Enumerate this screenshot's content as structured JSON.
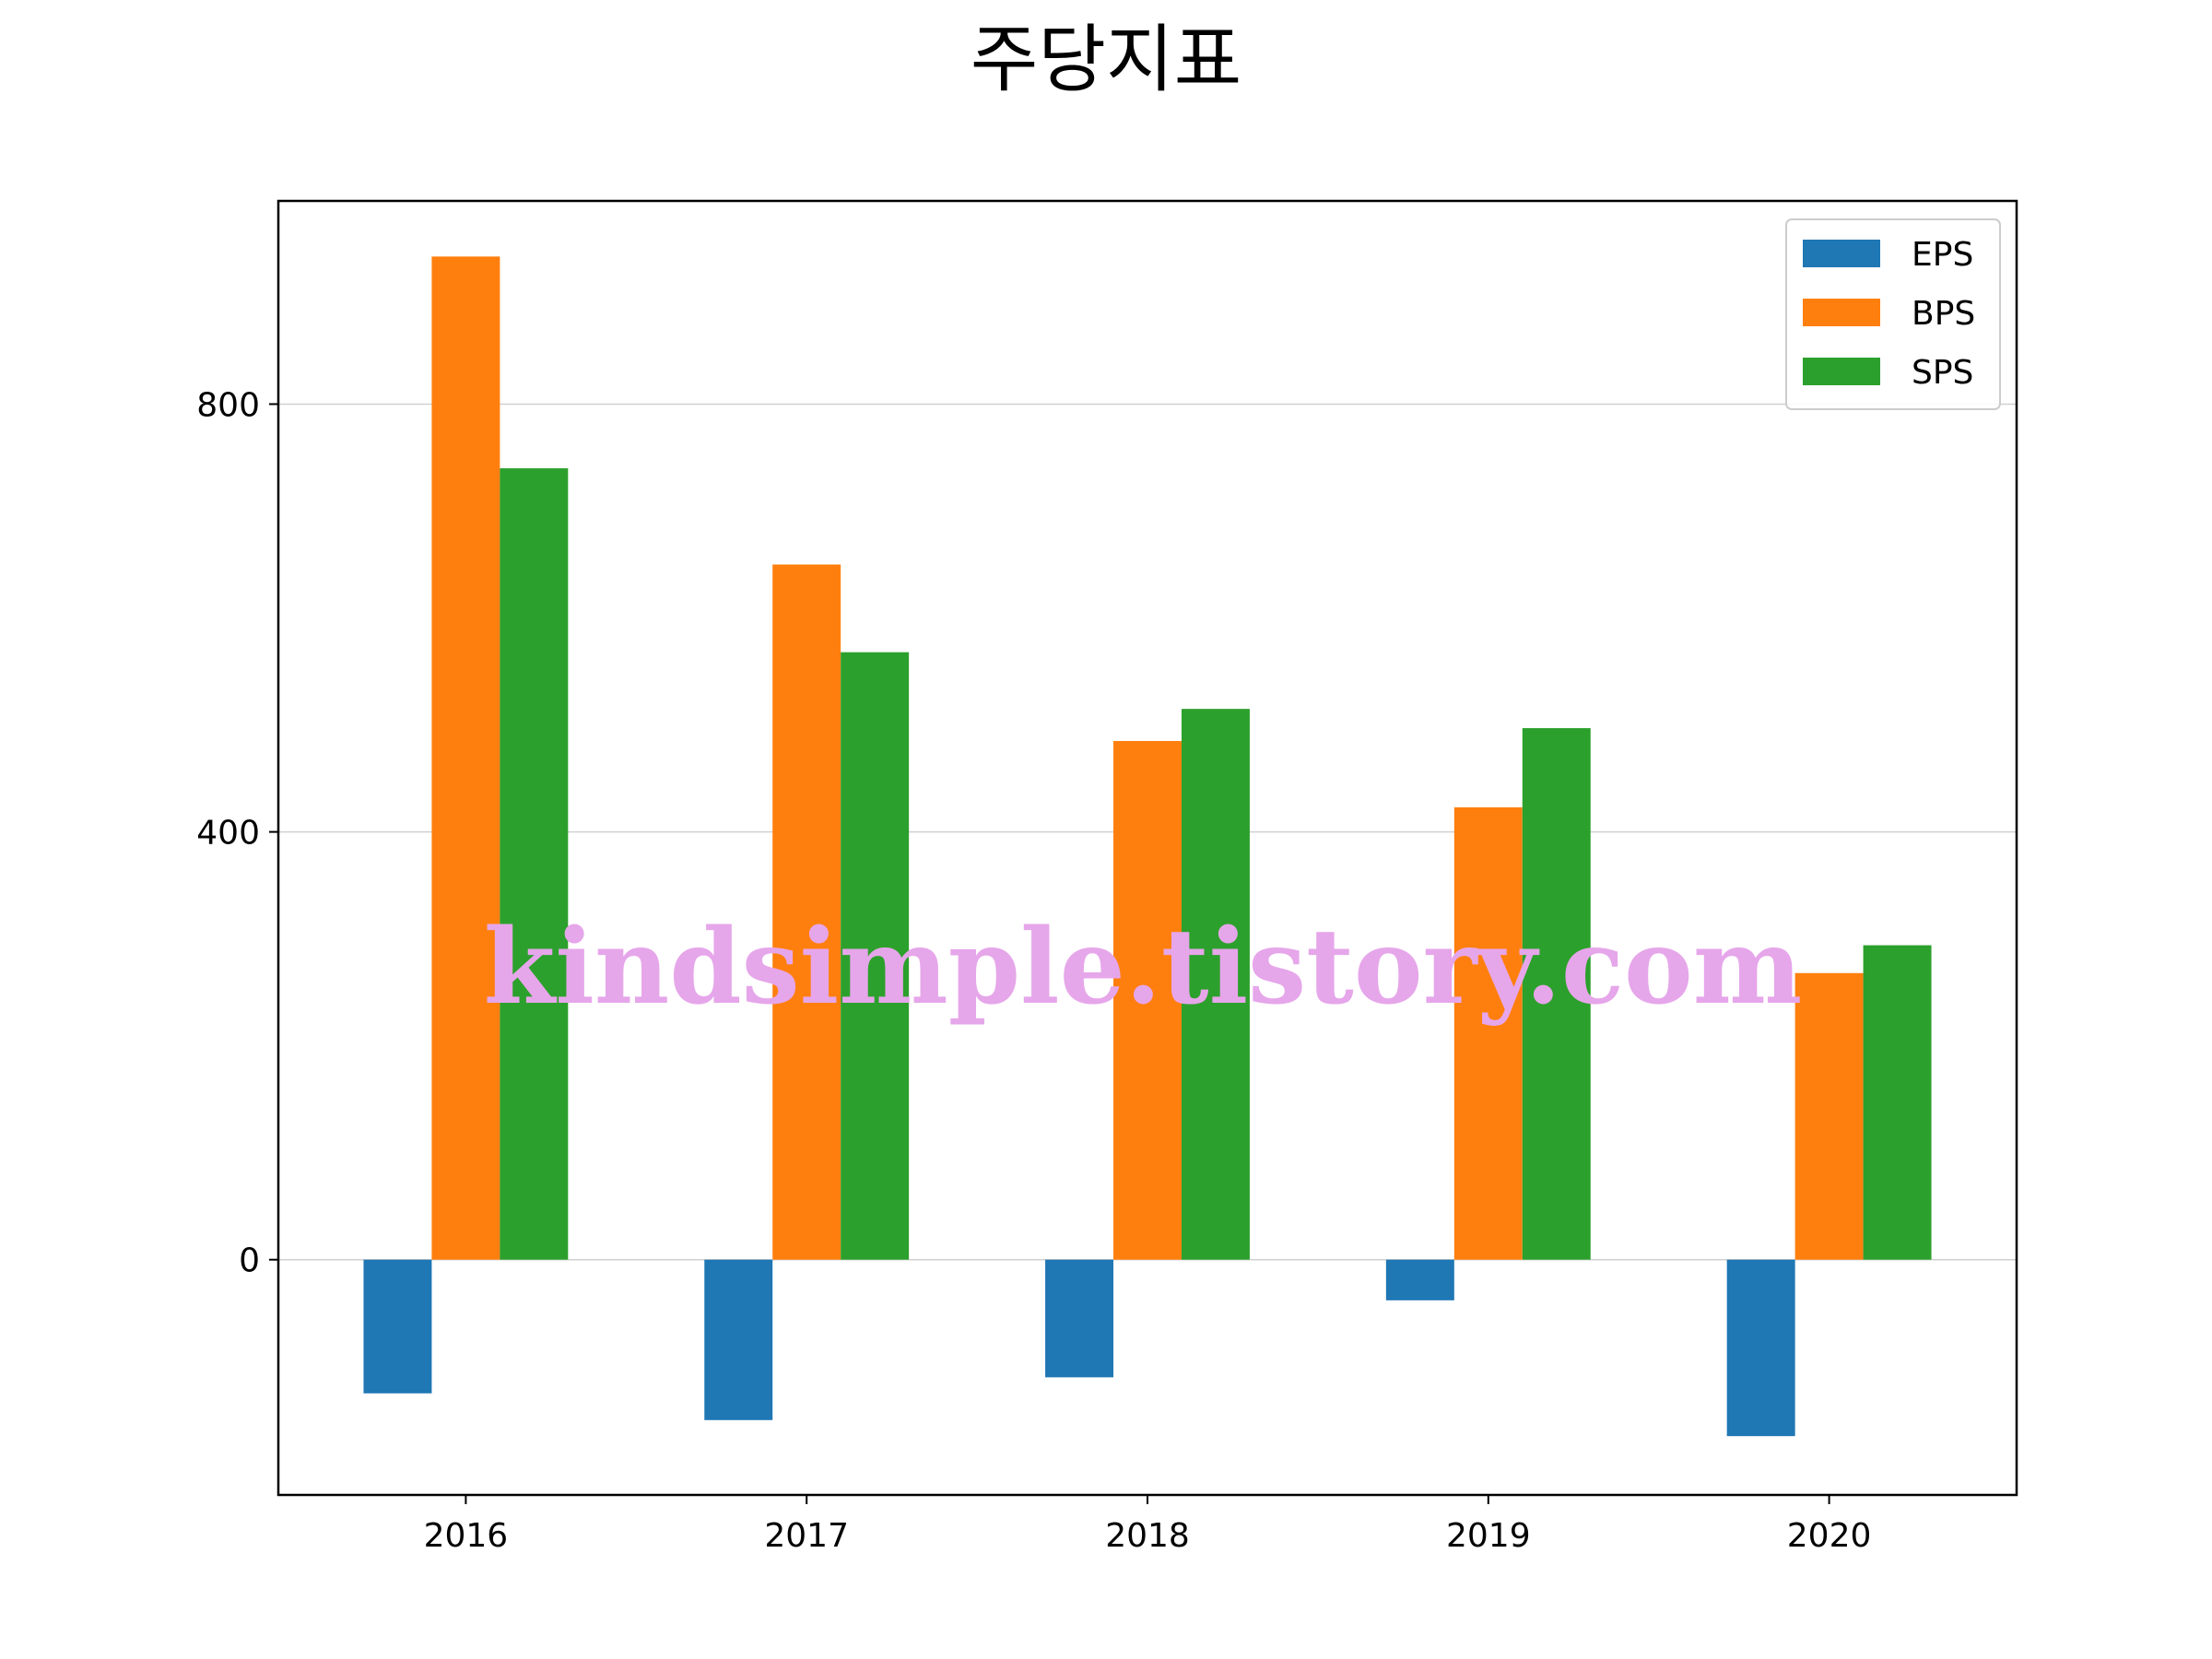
{
  "chart_data": {
    "type": "bar",
    "title": "주당지표",
    "xlabel": "",
    "ylabel": "",
    "categories": [
      "2016",
      "2017",
      "2018",
      "2019",
      "2020"
    ],
    "series": [
      {
        "name": "EPS",
        "color": "#1f77b4",
        "values": [
          -125,
          -150,
          -110,
          -38,
          -165
        ]
      },
      {
        "name": "BPS",
        "color": "#ff7f0e",
        "values": [
          938,
          650,
          485,
          423,
          268
        ]
      },
      {
        "name": "SPS",
        "color": "#2ca02c",
        "values": [
          740,
          568,
          515,
          497,
          294
        ]
      }
    ],
    "ylim": [
      -220,
      990
    ],
    "yticks": [
      "0",
      "400",
      "800"
    ],
    "grid": "horizontal",
    "legend_position": "top-right"
  },
  "watermark": "kindsimple.tistory.com"
}
